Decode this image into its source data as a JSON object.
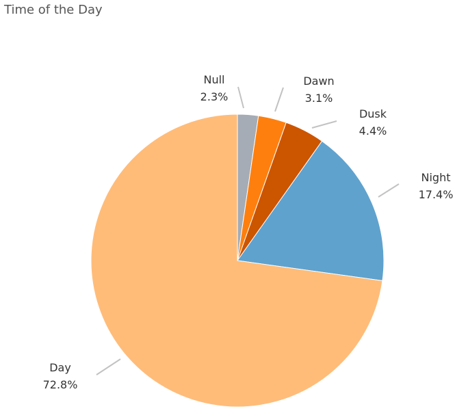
{
  "chart_data": {
    "type": "pie",
    "title": "Time of the Day",
    "slices": [
      {
        "name": "Null",
        "percent_label": "2.3%",
        "value": 2.3,
        "color": "#a5acb5"
      },
      {
        "name": "Dawn",
        "percent_label": "3.1%",
        "value": 3.1,
        "color": "#ff7f0e"
      },
      {
        "name": "Dusk",
        "percent_label": "4.4%",
        "value": 4.4,
        "color": "#cc5500"
      },
      {
        "name": "Night",
        "percent_label": "17.4%",
        "value": 17.4,
        "color": "#5fa2ce"
      },
      {
        "name": "Day",
        "percent_label": "72.8%",
        "value": 72.8,
        "color": "#ffbc79"
      }
    ],
    "start_angle_deg": 0,
    "direction": "clockwise",
    "legend": "none"
  }
}
